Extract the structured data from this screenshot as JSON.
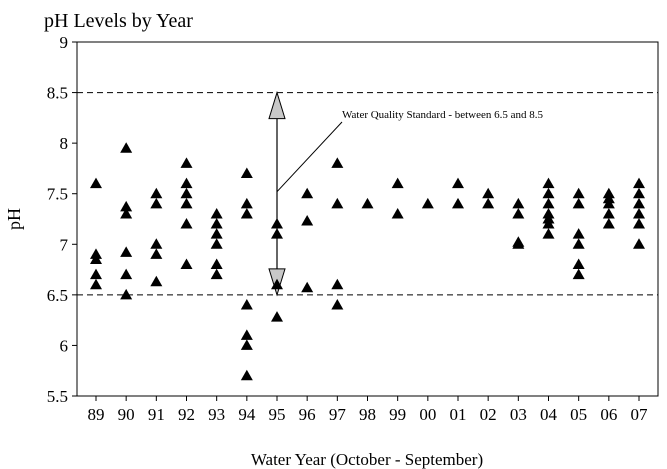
{
  "chart_data": {
    "type": "scatter",
    "title": "pH Levels by Year",
    "xlabel": "Water Year (October - September)",
    "ylabel": "pH",
    "categories": [
      "89",
      "90",
      "91",
      "92",
      "93",
      "94",
      "95",
      "96",
      "97",
      "98",
      "99",
      "00",
      "01",
      "02",
      "03",
      "04",
      "05",
      "06",
      "07"
    ],
    "ylim": [
      5.5,
      9
    ],
    "yticks": [
      5.5,
      6,
      6.5,
      7,
      7.5,
      8,
      8.5,
      9
    ],
    "ytick_labels": [
      "5.5",
      "6",
      "6.5",
      "7",
      "7.5",
      "8",
      "8.5",
      "9"
    ],
    "grid": false,
    "marker": "triangle",
    "marker_color": "#000000",
    "reference_lines": [
      {
        "y": 8.5,
        "style": "dashed"
      },
      {
        "y": 6.5,
        "style": "dashed"
      }
    ],
    "annotation": {
      "text": "Water Quality Standard - between 6.5 and 8.5",
      "arrow_category": "95",
      "arrow_range": [
        6.5,
        8.5
      ]
    },
    "points": [
      {
        "x": "89",
        "y": 7.6
      },
      {
        "x": "89",
        "y": 6.9
      },
      {
        "x": "89",
        "y": 6.85
      },
      {
        "x": "89",
        "y": 6.7
      },
      {
        "x": "89",
        "y": 6.6
      },
      {
        "x": "90",
        "y": 7.95
      },
      {
        "x": "90",
        "y": 7.37
      },
      {
        "x": "90",
        "y": 7.3
      },
      {
        "x": "90",
        "y": 6.92
      },
      {
        "x": "90",
        "y": 6.7
      },
      {
        "x": "90",
        "y": 6.5
      },
      {
        "x": "91",
        "y": 7.5
      },
      {
        "x": "91",
        "y": 7.4
      },
      {
        "x": "91",
        "y": 7.0
      },
      {
        "x": "91",
        "y": 6.9
      },
      {
        "x": "91",
        "y": 6.63
      },
      {
        "x": "92",
        "y": 7.8
      },
      {
        "x": "92",
        "y": 7.6
      },
      {
        "x": "92",
        "y": 7.5
      },
      {
        "x": "92",
        "y": 7.4
      },
      {
        "x": "92",
        "y": 7.2
      },
      {
        "x": "92",
        "y": 6.8
      },
      {
        "x": "93",
        "y": 7.3
      },
      {
        "x": "93",
        "y": 7.2
      },
      {
        "x": "93",
        "y": 7.1
      },
      {
        "x": "93",
        "y": 7.0
      },
      {
        "x": "93",
        "y": 6.8
      },
      {
        "x": "93",
        "y": 6.7
      },
      {
        "x": "94",
        "y": 7.7
      },
      {
        "x": "94",
        "y": 7.4
      },
      {
        "x": "94",
        "y": 7.3
      },
      {
        "x": "94",
        "y": 6.4
      },
      {
        "x": "94",
        "y": 6.1
      },
      {
        "x": "94",
        "y": 6.0
      },
      {
        "x": "94",
        "y": 5.7
      },
      {
        "x": "95",
        "y": 7.2
      },
      {
        "x": "95",
        "y": 7.1
      },
      {
        "x": "95",
        "y": 6.6
      },
      {
        "x": "95",
        "y": 6.28
      },
      {
        "x": "96",
        "y": 7.5
      },
      {
        "x": "96",
        "y": 7.23
      },
      {
        "x": "96",
        "y": 6.57
      },
      {
        "x": "97",
        "y": 7.8
      },
      {
        "x": "97",
        "y": 7.4
      },
      {
        "x": "97",
        "y": 6.6
      },
      {
        "x": "97",
        "y": 6.4
      },
      {
        "x": "98",
        "y": 7.4
      },
      {
        "x": "99",
        "y": 7.6
      },
      {
        "x": "99",
        "y": 7.3
      },
      {
        "x": "00",
        "y": 7.4
      },
      {
        "x": "01",
        "y": 7.6
      },
      {
        "x": "01",
        "y": 7.4
      },
      {
        "x": "02",
        "y": 7.5
      },
      {
        "x": "02",
        "y": 7.4
      },
      {
        "x": "03",
        "y": 7.4
      },
      {
        "x": "03",
        "y": 7.3
      },
      {
        "x": "03",
        "y": 7.0
      },
      {
        "x": "03",
        "y": 7.02
      },
      {
        "x": "04",
        "y": 7.6
      },
      {
        "x": "04",
        "y": 7.5
      },
      {
        "x": "04",
        "y": 7.4
      },
      {
        "x": "04",
        "y": 7.3
      },
      {
        "x": "04",
        "y": 7.25
      },
      {
        "x": "04",
        "y": 7.2
      },
      {
        "x": "04",
        "y": 7.1
      },
      {
        "x": "05",
        "y": 7.5
      },
      {
        "x": "05",
        "y": 7.4
      },
      {
        "x": "05",
        "y": 7.1
      },
      {
        "x": "05",
        "y": 7.0
      },
      {
        "x": "05",
        "y": 6.8
      },
      {
        "x": "05",
        "y": 6.7
      },
      {
        "x": "06",
        "y": 7.5
      },
      {
        "x": "06",
        "y": 7.45
      },
      {
        "x": "06",
        "y": 7.4
      },
      {
        "x": "06",
        "y": 7.3
      },
      {
        "x": "06",
        "y": 7.2
      },
      {
        "x": "07",
        "y": 7.6
      },
      {
        "x": "07",
        "y": 7.5
      },
      {
        "x": "07",
        "y": 7.4
      },
      {
        "x": "07",
        "y": 7.3
      },
      {
        "x": "07",
        "y": 7.2
      },
      {
        "x": "07",
        "y": 7.0
      }
    ]
  }
}
